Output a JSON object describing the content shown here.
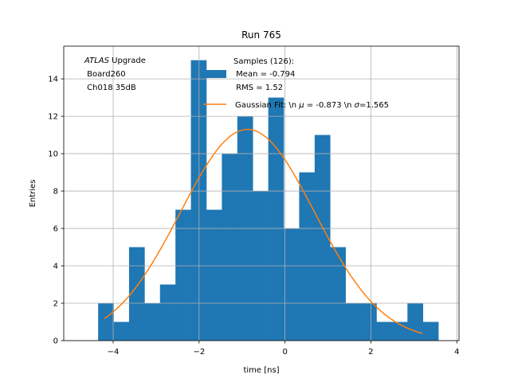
{
  "chart_data": {
    "type": "bar",
    "title": "Run 765",
    "xlabel": "time [ns]",
    "ylabel": "Entries",
    "xlim": [
      -5.15,
      4.05
    ],
    "ylim": [
      0,
      15.75
    ],
    "grid": true,
    "x_ticks": [
      -4,
      -2,
      0,
      2,
      4
    ],
    "x_tick_labels": [
      "−4",
      "−2",
      "0",
      "2",
      "4"
    ],
    "y_ticks": [
      0,
      2,
      4,
      6,
      8,
      10,
      12,
      14
    ],
    "y_tick_labels": [
      "0",
      "2",
      "4",
      "6",
      "8",
      "10",
      "12",
      "14"
    ],
    "bin_edges": [
      -4.35,
      -3.99,
      -3.63,
      -3.27,
      -2.91,
      -2.55,
      -2.19,
      -1.83,
      -1.47,
      -1.11,
      -0.75,
      -0.39,
      -0.03,
      0.33,
      0.69,
      1.05,
      1.41,
      1.77,
      2.13,
      2.49,
      2.85,
      3.21,
      3.57
    ],
    "counts": [
      2,
      1,
      5,
      2,
      3,
      7,
      15,
      7,
      10,
      12,
      8,
      13,
      6,
      9,
      11,
      5,
      2,
      2,
      1,
      1,
      2,
      1
    ],
    "series": [
      {
        "name": "Samples (126):",
        "kind": "histogram",
        "color": "#1f77b4"
      },
      {
        "name": "Gaussian Fit: \\n $\\mu$ = -0.873 \\n $\\sigma$=1.565",
        "kind": "line",
        "color": "#ff7f0e"
      }
    ],
    "fit": {
      "mu": -0.873,
      "sigma": 1.565,
      "amplitude": 11.3,
      "x_range": [
        -4.2,
        3.2
      ]
    },
    "legend": {
      "placement": "top-right",
      "hist_lines": [
        "Samples (126):",
        " Mean = -0.794",
        " RMS = 1.52"
      ],
      "fit_prefix": "Gaussian Fit: \\n ",
      "fit_mu_sym": "μ",
      "fit_mid": " = -0.873 \\n ",
      "fit_sigma_sym": "σ",
      "fit_suffix": "=1.565"
    },
    "annotation": {
      "placement": "top-left",
      "experiment": "ATLAS",
      "experiment_suffix": " Upgrade",
      "board": " Board260",
      "channel": " Ch018 35dB"
    }
  }
}
